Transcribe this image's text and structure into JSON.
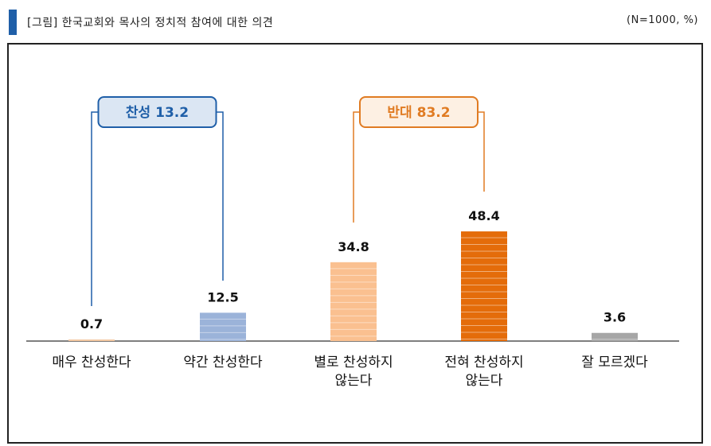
{
  "header": {
    "title": "[그림] 한국교회와 목사의 정치적 참여에 대한 의견",
    "note": "(N=1000, %)"
  },
  "groups": [
    {
      "label": "찬성 13.2",
      "color": "#1f5fa8",
      "fill": "#dbe6f3",
      "from": 0,
      "to": 1
    },
    {
      "label": "반대 83.2",
      "color": "#e07b22",
      "fill": "#fdf0e3",
      "from": 2,
      "to": 3
    }
  ],
  "chart_data": {
    "type": "bar",
    "categories": [
      [
        "매우 찬성한다"
      ],
      [
        "약간 찬성한다"
      ],
      [
        "별로 찬성하지",
        "않는다"
      ],
      [
        "전혀 찬성하지",
        "않는다"
      ],
      [
        "잘 모르겠다"
      ]
    ],
    "values": [
      0.7,
      12.5,
      34.8,
      48.4,
      3.6
    ],
    "data_labels": [
      "0.7",
      "12.5",
      "34.8",
      "48.4",
      "3.6"
    ],
    "colors": [
      "#f3c9a3",
      "#9bb3d9",
      "#fac090",
      "#e46c0a",
      "#a6a6a6"
    ],
    "ylim": [
      0,
      100
    ],
    "grid": false,
    "legend": "none"
  }
}
